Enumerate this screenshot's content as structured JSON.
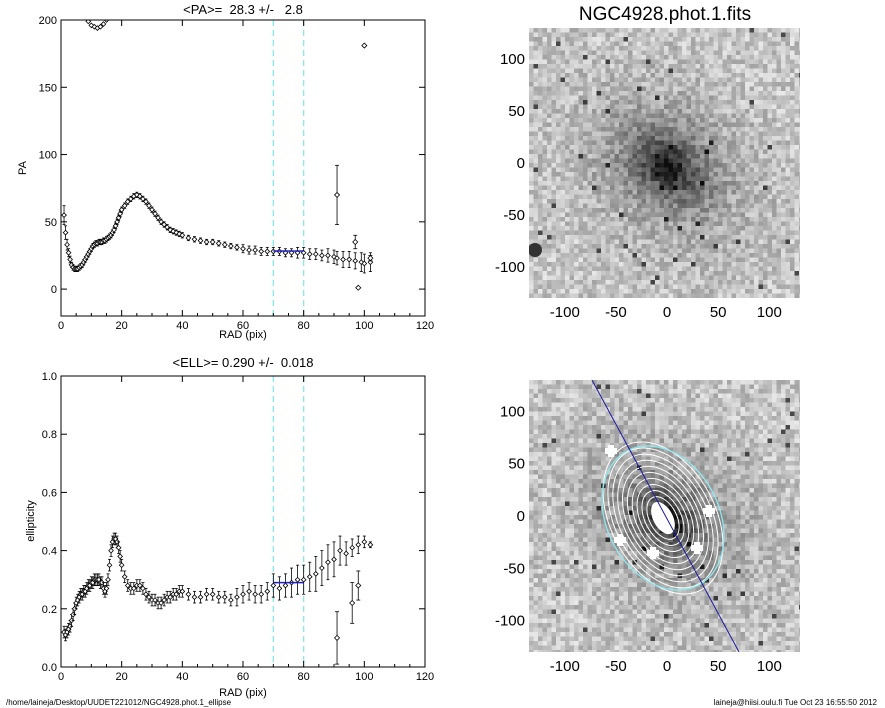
{
  "chart_data": [
    {
      "type": "scatter",
      "title": "<PA>=  28.3 +/-   2.8",
      "xlabel": "RAD (pix)",
      "ylabel": "PA",
      "xlim": [
        0,
        120
      ],
      "ylim": [
        -20,
        200
      ],
      "xticks": [
        0,
        20,
        40,
        60,
        80,
        100,
        120
      ],
      "yticks": [
        0,
        50,
        100,
        150,
        200
      ],
      "vlines": [
        70,
        80
      ],
      "fit": {
        "x0": 70,
        "x1": 80,
        "y": 28.3
      },
      "series": [
        {
          "x": [
            1,
            1.5,
            2,
            2.5,
            3,
            3.5,
            4,
            4.5,
            5,
            5.5,
            6,
            6.5,
            7,
            7.5,
            8,
            8.5,
            9,
            9.5,
            10,
            10.5,
            11,
            11.5,
            12,
            12.5,
            13,
            13.5,
            14,
            14.5,
            15,
            15.5,
            16,
            16.5,
            17,
            17.5,
            18,
            18.5,
            19,
            19.5,
            20,
            21,
            22,
            23,
            24,
            25,
            26,
            27,
            28,
            29,
            30,
            31,
            32,
            33,
            34,
            35,
            36,
            37,
            38,
            39,
            40,
            42,
            44,
            46,
            48,
            50,
            52,
            54,
            56,
            58,
            60,
            62,
            64,
            66,
            68,
            70,
            72,
            74,
            76,
            78,
            80,
            82,
            84,
            86,
            88,
            90,
            91,
            93,
            95,
            97,
            99,
            100,
            102
          ],
          "y": [
            55,
            42,
            33,
            27,
            22,
            18,
            16,
            15,
            15,
            15,
            16,
            17,
            18,
            20,
            22,
            24,
            26,
            28,
            30,
            32,
            33,
            34,
            34,
            35,
            35,
            35,
            36,
            36,
            37,
            38,
            39,
            40,
            42,
            44,
            47,
            50,
            53,
            56,
            59,
            62,
            65,
            67,
            69,
            70,
            69,
            67,
            65,
            62,
            59,
            56,
            53,
            50,
            48,
            46,
            44,
            43,
            42,
            41,
            40,
            38,
            37,
            36,
            35,
            35,
            34,
            33,
            32,
            31,
            30,
            29,
            29,
            28,
            28,
            28,
            28,
            27,
            27,
            27,
            27,
            26,
            26,
            25,
            25,
            24,
            23,
            22,
            22,
            21,
            20,
            19,
            20
          ],
          "err": [
            7,
            5,
            4,
            3,
            2.5,
            2,
            2,
            2,
            2,
            2,
            2,
            2,
            2,
            2,
            2,
            2,
            2,
            2,
            2,
            2,
            2,
            2,
            2,
            2,
            2,
            2,
            2,
            2,
            2,
            2,
            2,
            2,
            2,
            2,
            2,
            2,
            2,
            2,
            2,
            2,
            2,
            2,
            2,
            2,
            2,
            2,
            2,
            2,
            2,
            2,
            2,
            2,
            2,
            2,
            2,
            2,
            2,
            2,
            2,
            2,
            2,
            2,
            2,
            2,
            2,
            2,
            2,
            2,
            3,
            3,
            3,
            3,
            3,
            3,
            3,
            3,
            3,
            4,
            4,
            4,
            4,
            4,
            5,
            5,
            5,
            6,
            6,
            6,
            7,
            7,
            7
          ],
          "outliers": [
            {
              "x": 91,
              "y": 70,
              "err": 22
            },
            {
              "x": 97,
              "y": 35,
              "err": 5
            },
            {
              "x": 98,
              "y": 1,
              "err": 0
            },
            {
              "x": 100,
              "y": 181,
              "err": 0
            },
            {
              "x": 102,
              "y": 23,
              "err": 2
            }
          ]
        }
      ]
    },
    {
      "type": "scatter",
      "title": "<ELL>= 0.290 +/-  0.018",
      "xlabel": "RAD (pix)",
      "ylabel": "ellipticity",
      "xlim": [
        0,
        120
      ],
      "ylim": [
        0,
        1
      ],
      "xticks": [
        0,
        20,
        40,
        60,
        80,
        100,
        120
      ],
      "yticks": [
        0.0,
        0.2,
        0.4,
        0.6,
        0.8,
        1.0
      ],
      "vlines": [
        70,
        80
      ],
      "fit": {
        "x0": 70,
        "x1": 80,
        "y": 0.29
      },
      "series": [
        {
          "x": [
            1,
            1.5,
            2,
            2.5,
            3,
            3.5,
            4,
            4.5,
            5,
            5.5,
            6,
            6.5,
            7,
            7.5,
            8,
            8.5,
            9,
            9.5,
            10,
            10.5,
            11,
            11.5,
            12,
            12.5,
            13,
            13.5,
            14,
            14.5,
            15,
            15.5,
            16,
            16.5,
            17,
            17.5,
            18,
            18.5,
            19,
            19.5,
            20,
            21,
            22,
            23,
            24,
            25,
            26,
            27,
            28,
            29,
            30,
            31,
            32,
            33,
            34,
            35,
            36,
            37,
            38,
            39,
            40,
            42,
            44,
            46,
            48,
            50,
            52,
            54,
            56,
            58,
            60,
            62,
            64,
            66,
            68,
            70,
            72,
            74,
            76,
            78,
            80,
            82,
            84,
            86,
            88,
            90,
            92,
            94,
            96,
            98,
            100,
            102
          ],
          "y": [
            0.12,
            0.11,
            0.12,
            0.13,
            0.14,
            0.16,
            0.18,
            0.2,
            0.22,
            0.23,
            0.24,
            0.25,
            0.25,
            0.26,
            0.26,
            0.27,
            0.28,
            0.28,
            0.29,
            0.29,
            0.3,
            0.3,
            0.3,
            0.3,
            0.29,
            0.29,
            0.27,
            0.26,
            0.27,
            0.3,
            0.35,
            0.4,
            0.43,
            0.44,
            0.44,
            0.43,
            0.41,
            0.38,
            0.35,
            0.31,
            0.28,
            0.27,
            0.27,
            0.28,
            0.28,
            0.27,
            0.25,
            0.24,
            0.23,
            0.23,
            0.22,
            0.22,
            0.23,
            0.24,
            0.24,
            0.25,
            0.25,
            0.26,
            0.26,
            0.25,
            0.24,
            0.24,
            0.25,
            0.25,
            0.24,
            0.24,
            0.23,
            0.24,
            0.25,
            0.26,
            0.25,
            0.25,
            0.26,
            0.28,
            0.27,
            0.28,
            0.29,
            0.3,
            0.3,
            0.31,
            0.32,
            0.34,
            0.36,
            0.37,
            0.4,
            0.39,
            0.41,
            0.42,
            0.43,
            0.42
          ],
          "err": [
            0.02,
            0.02,
            0.02,
            0.02,
            0.02,
            0.02,
            0.02,
            0.02,
            0.02,
            0.02,
            0.02,
            0.02,
            0.02,
            0.02,
            0.02,
            0.02,
            0.02,
            0.02,
            0.02,
            0.02,
            0.02,
            0.02,
            0.02,
            0.02,
            0.02,
            0.02,
            0.02,
            0.02,
            0.02,
            0.02,
            0.02,
            0.02,
            0.02,
            0.02,
            0.02,
            0.02,
            0.02,
            0.02,
            0.02,
            0.02,
            0.02,
            0.02,
            0.02,
            0.02,
            0.02,
            0.02,
            0.02,
            0.02,
            0.02,
            0.02,
            0.02,
            0.02,
            0.02,
            0.02,
            0.02,
            0.02,
            0.02,
            0.02,
            0.02,
            0.02,
            0.02,
            0.02,
            0.02,
            0.02,
            0.02,
            0.02,
            0.02,
            0.03,
            0.03,
            0.03,
            0.03,
            0.03,
            0.03,
            0.04,
            0.04,
            0.04,
            0.05,
            0.05,
            0.05,
            0.05,
            0.06,
            0.06,
            0.06,
            0.06,
            0.05,
            0.04,
            0.03,
            0.03,
            0.02,
            0.01
          ],
          "outliers": [
            {
              "x": 91,
              "y": 0.1,
              "err": 0.09
            },
            {
              "x": 96,
              "y": 0.22,
              "err": 0.07
            },
            {
              "x": 98,
              "y": 0.28,
              "err": 0.05
            }
          ]
        }
      ]
    },
    {
      "type": "heatmap",
      "title": "NGC4928.phot.1.fits",
      "xlim": [
        -135,
        130
      ],
      "ylim": [
        -130,
        130
      ],
      "xticks": [
        -100,
        -50,
        0,
        50,
        100
      ],
      "yticks": [
        100,
        50,
        0,
        -50,
        -100
      ],
      "colormap": "grey-inverted"
    },
    {
      "type": "heatmap",
      "title": "",
      "xlim": [
        -135,
        130
      ],
      "ylim": [
        -130,
        130
      ],
      "xticks": [
        -100,
        -50,
        0,
        50,
        100
      ],
      "yticks": [
        100,
        50,
        0,
        -50,
        -100
      ],
      "colormap": "grey-inverted",
      "overlay": {
        "outer_ellipse_color": "#8ee8f0",
        "major_axis_color": "#1a1aa0",
        "contour_color": "#ffffff"
      }
    }
  ],
  "footer": {
    "left": "/home/laineja/Desktop/UUDET221012/NGC4928.phot.1_ellipse",
    "right": "laineja@hiisi.oulu.fi  Tue Oct 23 16:55:50 2012"
  },
  "colors": {
    "vline": "#88e8ee",
    "fit": "#2020c0",
    "marker": "#000000"
  }
}
